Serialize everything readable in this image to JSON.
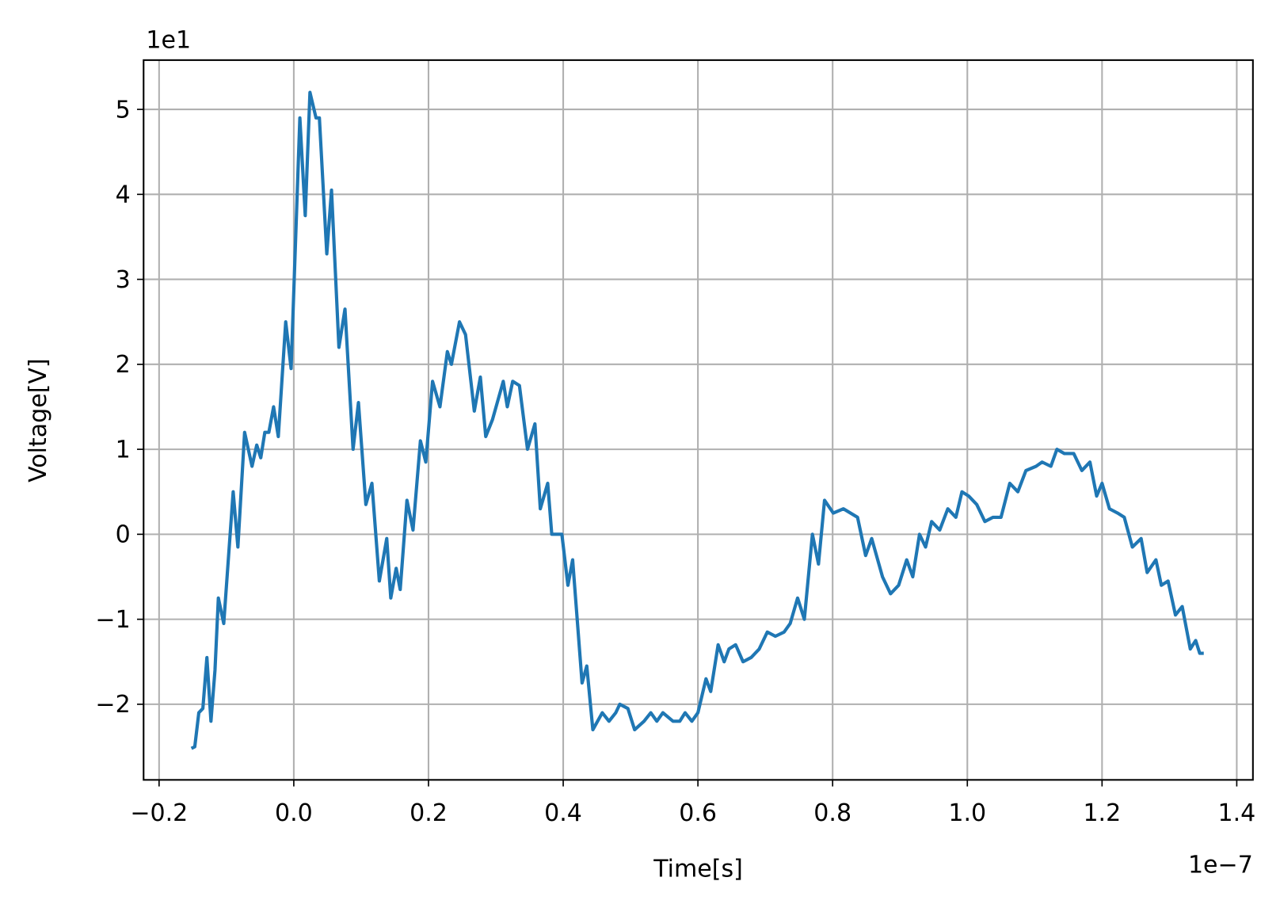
{
  "chart_data": {
    "type": "line",
    "xlabel": "Time[s]",
    "ylabel": "Voltage[V]",
    "x_offset_label": "1e−7",
    "y_offset_label": "1e1",
    "color": "#1f77b4",
    "grid": true,
    "xlim": [
      -0.223,
      1.424
    ],
    "ylim": [
      -2.89,
      5.58
    ],
    "xticks": [
      {
        "value": -0.2,
        "label": "−0.2"
      },
      {
        "value": 0,
        "label": "0.0"
      },
      0.2,
      0.4,
      0.6,
      0.8,
      {
        "value": 1,
        "label": "1.0"
      },
      1.2,
      1.4
    ],
    "yticks": [
      {
        "value": -2,
        "label": "−2"
      },
      {
        "value": -1,
        "label": "−1"
      },
      0,
      1,
      2,
      3,
      4,
      5
    ],
    "x": [
      -0.152,
      -0.147,
      -0.141,
      -0.135,
      -0.129,
      -0.123,
      -0.117,
      -0.112,
      -0.104,
      -0.09,
      -0.083,
      -0.073,
      -0.062,
      -0.055,
      -0.049,
      -0.043,
      -0.037,
      -0.03,
      -0.023,
      -0.012,
      -0.004,
      0.009,
      0.017,
      0.024,
      0.033,
      0.038,
      0.049,
      0.056,
      0.067,
      0.076,
      0.088,
      0.096,
      0.107,
      0.116,
      0.127,
      0.138,
      0.144,
      0.152,
      0.158,
      0.168,
      0.177,
      0.188,
      0.196,
      0.206,
      0.217,
      0.228,
      0.234,
      0.246,
      0.255,
      0.268,
      0.277,
      0.285,
      0.295,
      0.311,
      0.317,
      0.325,
      0.335,
      0.347,
      0.358,
      0.366,
      0.377,
      0.383,
      0.398,
      0.407,
      0.414,
      0.428,
      0.435,
      0.444,
      0.458,
      0.468,
      0.478,
      0.484,
      0.496,
      0.506,
      0.52,
      0.53,
      0.539,
      0.548,
      0.563,
      0.573,
      0.581,
      0.591,
      0.6,
      0.612,
      0.619,
      0.63,
      0.639,
      0.646,
      0.656,
      0.667,
      0.679,
      0.691,
      0.703,
      0.715,
      0.728,
      0.737,
      0.748,
      0.758,
      0.77,
      0.779,
      0.788,
      0.801,
      0.816,
      0.837,
      0.849,
      0.858,
      0.874,
      0.886,
      0.898,
      0.91,
      0.919,
      0.929,
      0.938,
      0.947,
      0.959,
      0.971,
      0.983,
      0.992,
      1.002,
      1.014,
      1.026,
      1.038,
      1.05,
      1.063,
      1.075,
      1.087,
      1.102,
      1.111,
      1.124,
      1.133,
      1.144,
      1.158,
      1.17,
      1.182,
      1.192,
      1.2,
      1.211,
      1.223,
      1.233,
      1.245,
      1.258,
      1.267,
      1.28,
      1.288,
      1.298,
      1.309,
      1.319,
      1.331,
      1.339,
      1.345,
      1.351
    ],
    "values": [
      -2.52,
      -2.5,
      -2.1,
      -2.05,
      -1.45,
      -2.2,
      -1.6,
      -0.75,
      -1.05,
      0.5,
      -0.15,
      1.2,
      0.8,
      1.05,
      0.9,
      1.2,
      1.2,
      1.5,
      1.15,
      2.5,
      1.95,
      4.9,
      3.75,
      5.2,
      4.9,
      4.9,
      3.3,
      4.05,
      2.2,
      2.65,
      1.0,
      1.55,
      0.35,
      0.6,
      -0.55,
      -0.05,
      -0.75,
      -0.4,
      -0.65,
      0.4,
      0.05,
      1.1,
      0.85,
      1.8,
      1.5,
      2.15,
      2.0,
      2.5,
      2.35,
      1.45,
      1.85,
      1.15,
      1.35,
      1.8,
      1.5,
      1.8,
      1.75,
      1.0,
      1.3,
      0.3,
      0.6,
      0.0,
      0.0,
      -0.6,
      -0.3,
      -1.75,
      -1.55,
      -2.3,
      -2.1,
      -2.2,
      -2.1,
      -2.0,
      -2.05,
      -2.3,
      -2.2,
      -2.1,
      -2.2,
      -2.1,
      -2.2,
      -2.2,
      -2.1,
      -2.2,
      -2.1,
      -1.7,
      -1.85,
      -1.3,
      -1.5,
      -1.35,
      -1.3,
      -1.5,
      -1.45,
      -1.35,
      -1.15,
      -1.2,
      -1.15,
      -1.05,
      -0.75,
      -1.0,
      0.0,
      -0.35,
      0.4,
      0.25,
      0.3,
      0.2,
      -0.25,
      -0.05,
      -0.5,
      -0.7,
      -0.6,
      -0.3,
      -0.5,
      0.0,
      -0.15,
      0.15,
      0.05,
      0.3,
      0.2,
      0.5,
      0.45,
      0.35,
      0.15,
      0.2,
      0.2,
      0.6,
      0.5,
      0.75,
      0.8,
      0.85,
      0.8,
      1.0,
      0.95,
      0.95,
      0.75,
      0.85,
      0.45,
      0.6,
      0.3,
      0.25,
      0.2,
      -0.15,
      -0.05,
      -0.45,
      -0.3,
      -0.6,
      -0.55,
      -0.95,
      -0.85,
      -1.35,
      -1.25,
      -1.4,
      -1.4
    ]
  }
}
